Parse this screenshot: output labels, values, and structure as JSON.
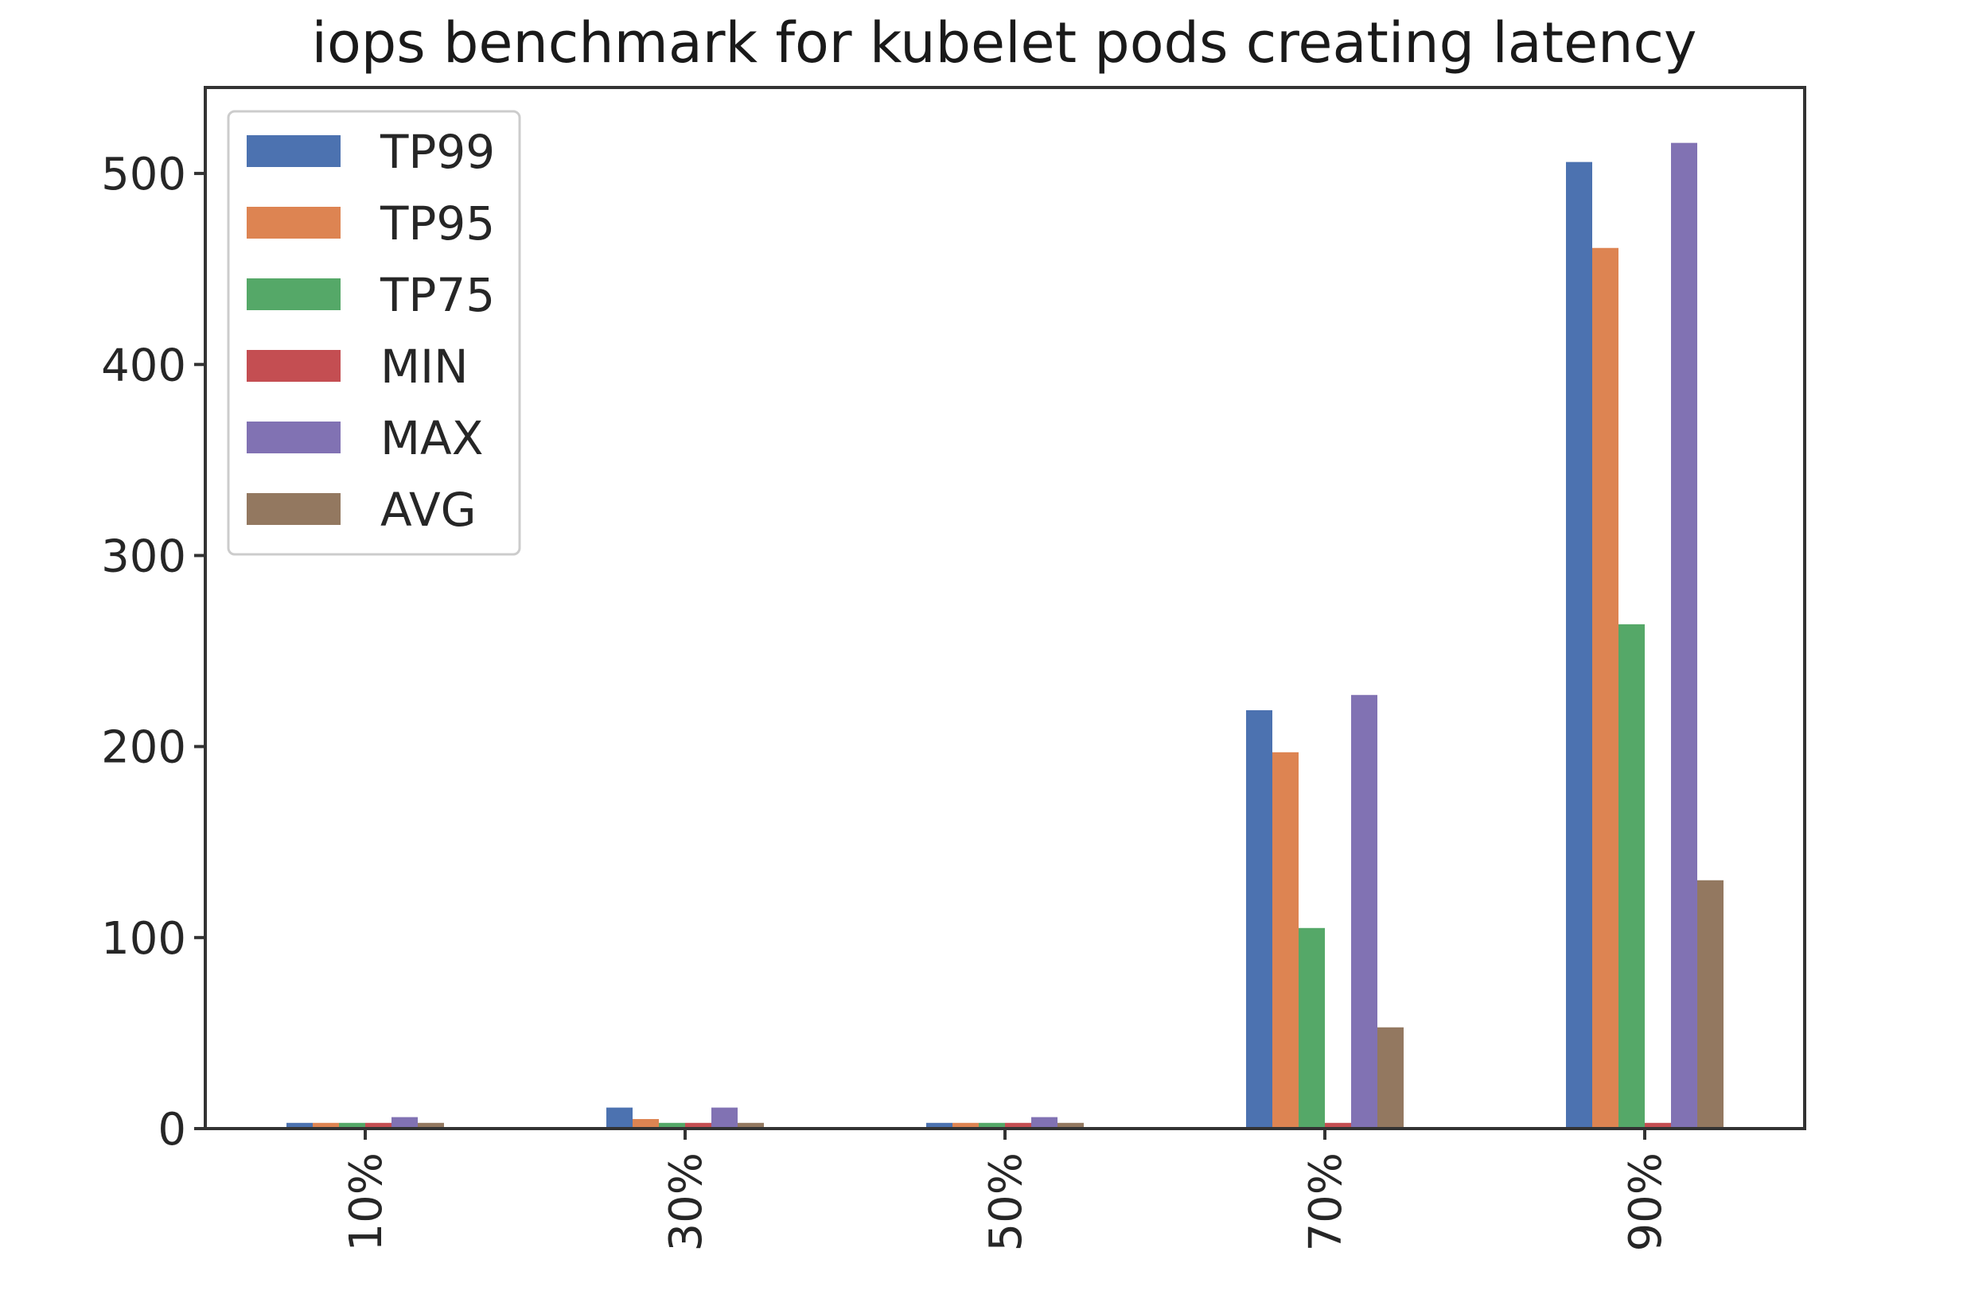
{
  "chart_data": {
    "type": "bar",
    "title": "iops benchmark for kubelet pods creating latency",
    "xlabel": "",
    "ylabel": "",
    "categories": [
      "10%",
      "30%",
      "50%",
      "70%",
      "90%"
    ],
    "series": [
      {
        "name": "TP99",
        "color": "#4c72b0",
        "values": [
          3,
          11,
          3,
          219,
          506
        ]
      },
      {
        "name": "TP95",
        "color": "#dd8452",
        "values": [
          3,
          5,
          3,
          197,
          461
        ]
      },
      {
        "name": "TP75",
        "color": "#55a868",
        "values": [
          3,
          3,
          3,
          105,
          264
        ]
      },
      {
        "name": "MIN",
        "color": "#c44e52",
        "values": [
          3,
          3,
          3,
          3,
          3
        ]
      },
      {
        "name": "MAX",
        "color": "#8172b3",
        "values": [
          6,
          11,
          6,
          227,
          516
        ]
      },
      {
        "name": "AVG",
        "color": "#937860",
        "values": [
          3,
          3,
          3,
          53,
          130
        ]
      }
    ],
    "ylim": [
      0,
      545
    ],
    "yticks": [
      0,
      100,
      200,
      300,
      400,
      500
    ],
    "legend_position": "top-left",
    "grid": false
  }
}
